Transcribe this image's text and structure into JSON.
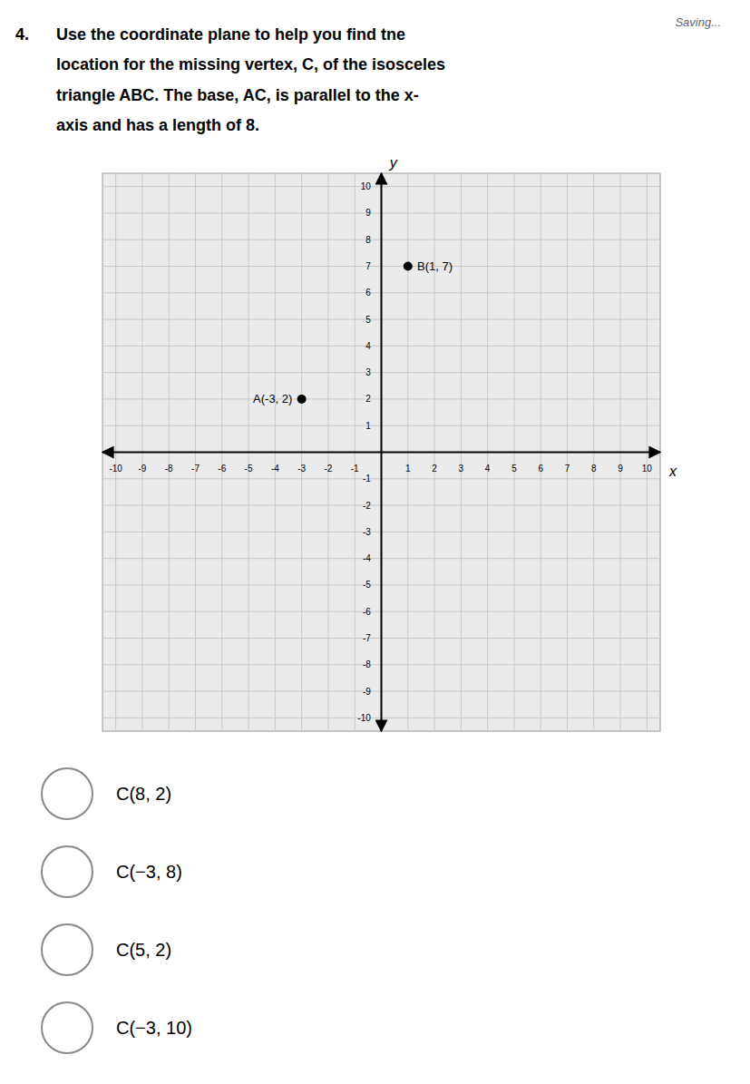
{
  "chart_data": {
    "type": "scatter",
    "title": [
      "Use the coordinate plane to help you find tne",
      "location for the missing vertex, C, of the isosceles",
      "triangle ABC. The base, AC, is parallel to the x-",
      "axis and has a length of 8."
    ],
    "annotations": [
      "Saving...",
      "4.",
      "C(8, 2)",
      "C(−3, 8)",
      "C(5, 2)",
      "C(−3, 10)"
    ],
    "x_label": "x",
    "y_label": "y",
    "x": [
      -3,
      1
    ],
    "values": [
      2,
      7
    ],
    "value_labels": [
      "A(-3, 2)",
      "B(1, 7)"
    ],
    "data_labels": true,
    "color": "#000000",
    "marker": "circle",
    "xlim": [
      -10.5,
      10.5
    ],
    "ylim": [
      -10.5,
      10.5
    ],
    "xticks": [
      -10,
      -9,
      -8,
      -7,
      -6,
      -5,
      -4,
      -3,
      -2,
      -1,
      1,
      2,
      3,
      4,
      5,
      6,
      7,
      8,
      9,
      10
    ],
    "yticks": [
      -10,
      -9,
      -8,
      -7,
      -6,
      -5,
      -4,
      -3,
      -2,
      -1,
      1,
      2,
      3,
      4,
      5,
      6,
      7,
      8,
      9,
      10
    ],
    "grid": true
  }
}
